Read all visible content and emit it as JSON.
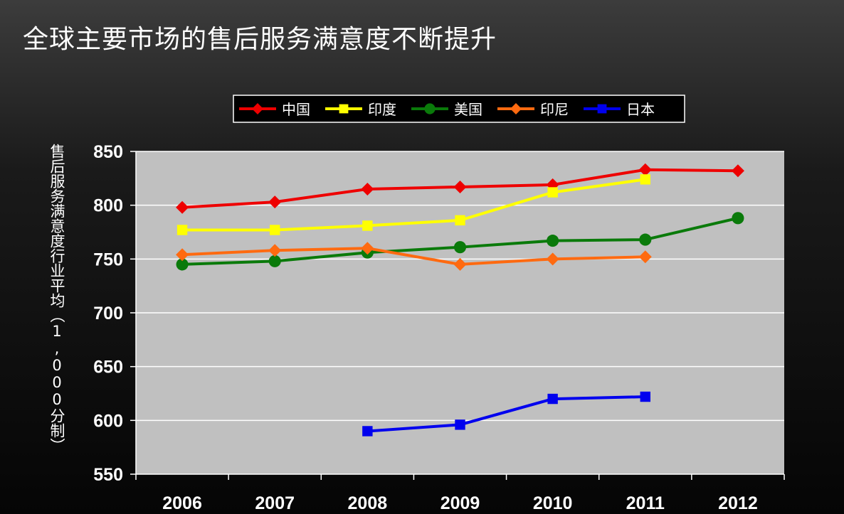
{
  "title": "全球主要市场的售后服务满意度不断提升",
  "chart_data": {
    "type": "line",
    "title": "全球主要市场的售后服务满意度不断提升",
    "xlabel": "",
    "ylabel": "售后服务满意度行业平均（1,000分制）",
    "categories": [
      "2006",
      "2007",
      "2008",
      "2009",
      "2010",
      "2011",
      "2012"
    ],
    "ylim": [
      550,
      850
    ],
    "yticks": [
      850,
      800,
      750,
      700,
      650,
      600,
      550
    ],
    "grid": true,
    "legend_position": "top",
    "plot_background": "#c0c0c0",
    "series": [
      {
        "name": "中国",
        "color": "#ee0000",
        "marker": "diamond",
        "values": [
          798,
          803,
          815,
          817,
          819,
          833,
          832
        ]
      },
      {
        "name": "印度",
        "color": "#ffff00",
        "marker": "square",
        "values": [
          777,
          777,
          781,
          786,
          812,
          824,
          null
        ]
      },
      {
        "name": "美国",
        "color": "#0a7a0a",
        "marker": "circle",
        "values": [
          745,
          748,
          756,
          761,
          767,
          768,
          788
        ]
      },
      {
        "name": "印尼",
        "color": "#ff6a10",
        "marker": "diamond",
        "values": [
          754,
          758,
          760,
          745,
          750,
          752,
          null
        ]
      },
      {
        "name": "日本",
        "color": "#0000ee",
        "marker": "square",
        "values": [
          null,
          null,
          590,
          596,
          620,
          622,
          null
        ]
      }
    ]
  }
}
